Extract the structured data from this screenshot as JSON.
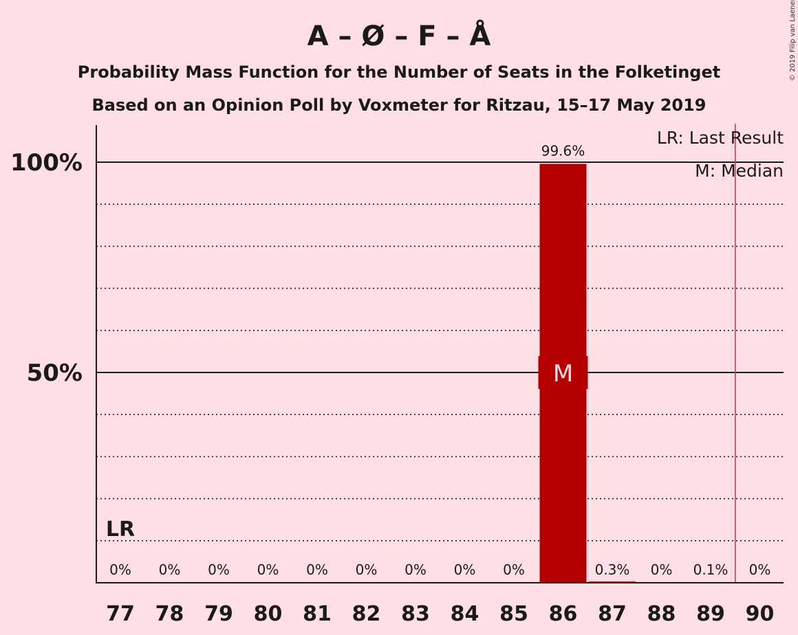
{
  "title": "A – Ø – F – Å",
  "subtitle1": "Probability Mass Function for the Number of Seats in the Folketinget",
  "subtitle2": "Based on an Opinion Poll by Voxmeter for Ritzau, 15–17 May 2019",
  "copyright": "© 2019 Filip van Laenen",
  "legend": {
    "last_result": "LR: Last Result",
    "median": "M: Median"
  },
  "colors": {
    "background": "#ffdfe3",
    "bar": "#b30000",
    "last_result_line": "#c0385a",
    "text": "#1a1a1a"
  },
  "chart_data": {
    "type": "bar",
    "categories": [
      "77",
      "78",
      "79",
      "80",
      "81",
      "82",
      "83",
      "84",
      "85",
      "86",
      "87",
      "88",
      "89",
      "90"
    ],
    "values": [
      0,
      0,
      0,
      0,
      0,
      0,
      0,
      0,
      0,
      99.6,
      0.3,
      0,
      0.1,
      0
    ],
    "data_labels": [
      "0%",
      "0%",
      "0%",
      "0%",
      "0%",
      "0%",
      "0%",
      "0%",
      "0%",
      "99.6%",
      "0.3%",
      "0%",
      "0.1%",
      "0%"
    ],
    "ylim": [
      0,
      100
    ],
    "y_ticks": [
      {
        "value": 50,
        "label": "50%"
      },
      {
        "value": 100,
        "label": "100%"
      }
    ],
    "minor_gridlines": [
      10,
      20,
      30,
      40,
      60,
      70,
      80,
      90
    ],
    "median_category": "86",
    "median_marker": "M",
    "last_result_category": "77",
    "last_result_marker": "LR",
    "last_result_line_at": 89.5,
    "legend_position": "top-right"
  }
}
